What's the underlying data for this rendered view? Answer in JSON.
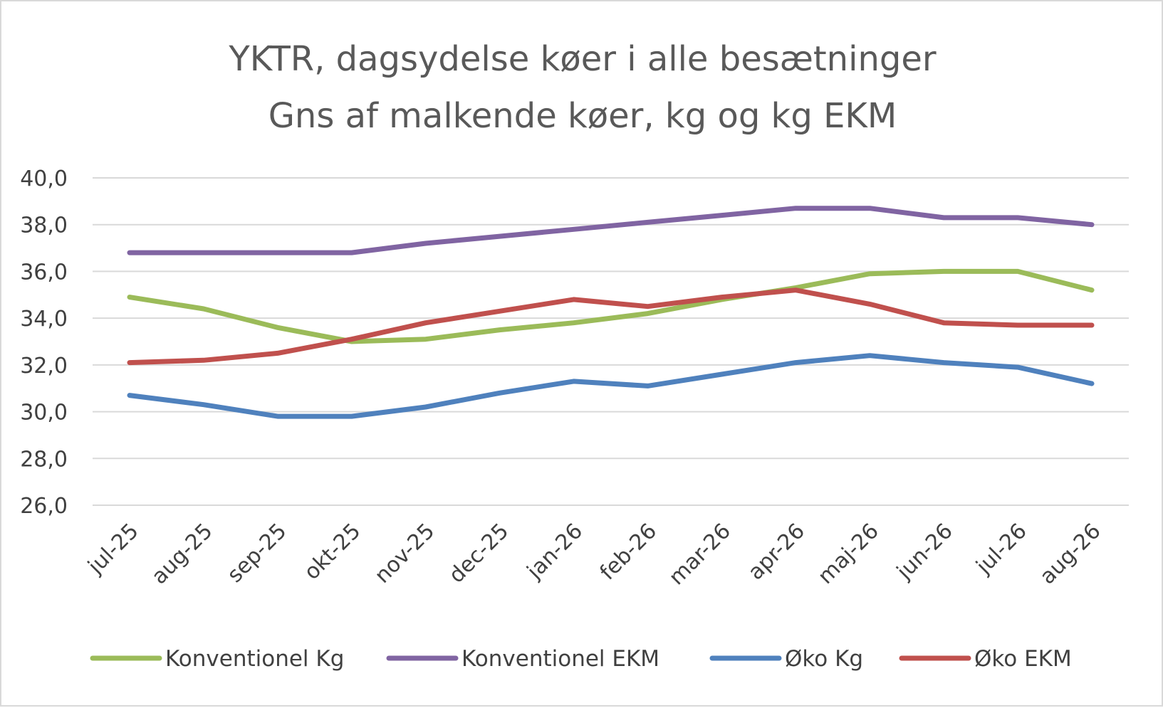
{
  "chart_data": {
    "type": "line",
    "title": "YKTR, dagsydelse køer i alle besætninger",
    "subtitle": "Gns af malkende køer, kg og kg EKM",
    "xlabel": "",
    "ylabel": "",
    "categories": [
      "jul-25",
      "aug-25",
      "sep-25",
      "okt-25",
      "nov-25",
      "dec-25",
      "jan-26",
      "feb-26",
      "mar-26",
      "apr-26",
      "maj-26",
      "jun-26",
      "jul-26",
      "aug-26"
    ],
    "ylim": [
      26,
      40
    ],
    "y_ticks": [
      "40,0",
      "38,0",
      "36,0",
      "34,0",
      "32,0",
      "30,0",
      "28,0",
      "26,0"
    ],
    "grid": true,
    "legend_position": "bottom",
    "series": [
      {
        "name": "Konventionel Kg",
        "color": "#9BBB59",
        "values": [
          34.9,
          34.4,
          33.6,
          33.0,
          33.1,
          33.5,
          33.8,
          34.2,
          34.8,
          35.3,
          35.9,
          36.0,
          36.0,
          35.2
        ]
      },
      {
        "name": "Konventionel EKM",
        "color": "#8064A2",
        "values": [
          36.8,
          36.8,
          36.8,
          36.8,
          37.2,
          37.5,
          37.8,
          38.1,
          38.4,
          38.7,
          38.7,
          38.3,
          38.3,
          38.0
        ]
      },
      {
        "name": "Øko Kg",
        "color": "#4F81BD",
        "values": [
          30.7,
          30.3,
          29.8,
          29.8,
          30.2,
          30.8,
          31.3,
          31.1,
          31.6,
          32.1,
          32.4,
          32.1,
          31.9,
          31.2
        ]
      },
      {
        "name": "Øko EKM",
        "color": "#C0504D",
        "values": [
          32.1,
          32.2,
          32.5,
          33.1,
          33.8,
          34.3,
          34.8,
          34.5,
          34.9,
          35.2,
          34.6,
          33.8,
          33.7,
          33.7
        ]
      }
    ]
  }
}
